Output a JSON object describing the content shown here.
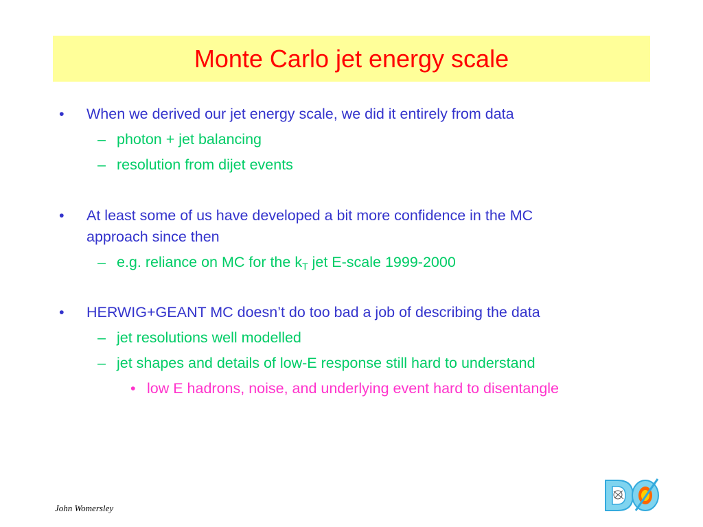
{
  "slide": {
    "title": "Monte Carlo jet energy scale",
    "bullets": [
      {
        "marker": "•",
        "lines": [
          "When we derived our jet energy scale, we did it entirely from data"
        ],
        "sub": [
          {
            "marker": "–",
            "text": "photon + jet balancing"
          },
          {
            "marker": "–",
            "text": "resolution from dijet events"
          }
        ]
      },
      {
        "marker": "•",
        "lines": [
          "At least some of us have developed a bit more confidence in the MC",
          "approach since then"
        ],
        "sub": [
          {
            "marker": "–",
            "text_pre": "e.g. reliance on MC for the k",
            "text_sub": "T",
            "text_post": " jet E-scale 1999-2000"
          }
        ]
      },
      {
        "marker": "•",
        "lines": [
          "HERWIG+GEANT MC doesn’t do too bad a job of describing the data"
        ],
        "sub": [
          {
            "marker": "–",
            "text": "jet resolutions well modelled"
          },
          {
            "marker": "–",
            "text": "jet shapes and details of low-E response still hard to understand"
          }
        ],
        "subsub": [
          {
            "marker": "•",
            "text": "low E hadrons, noise, and underlying event hard to disentangle"
          }
        ]
      }
    ],
    "footer": {
      "author": "John Womersley",
      "logo": "D0-experiment-logo"
    },
    "colors": {
      "title": "#ff0000",
      "title_bg": "#ffff99",
      "level1": "#3333cc",
      "level2": "#00cc66",
      "level3": "#ff33cc"
    }
  }
}
